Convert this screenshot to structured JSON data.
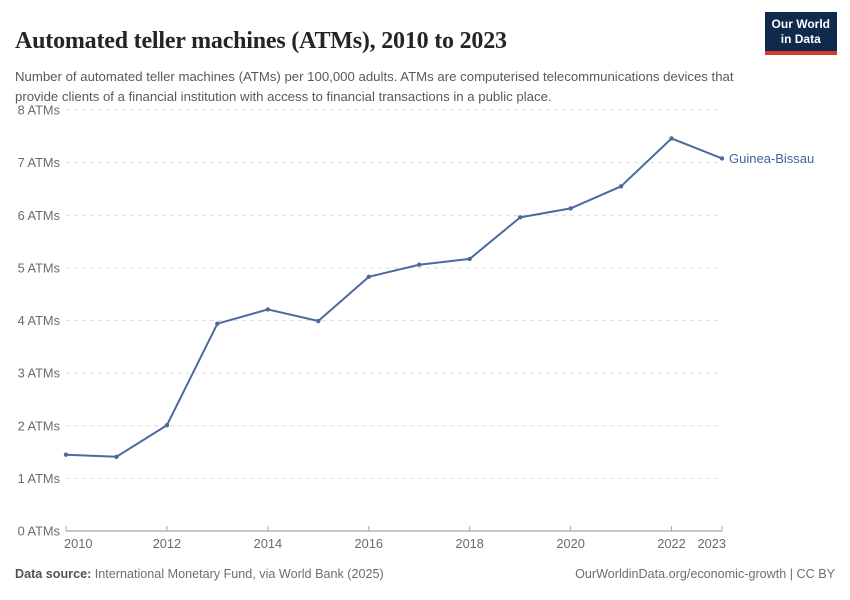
{
  "header": {
    "title": "Automated teller machines (ATMs), 2010 to 2023",
    "subtitle": "Number of automated teller machines (ATMs) per 100,000 adults. ATMs are computerised telecommunications devices that provide clients of a financial institution with access to financial transactions in a public place.",
    "logo": {
      "line1": "Our World",
      "line2": "in Data",
      "bg_color": "#102a4e",
      "accent_color": "#d33a2c"
    }
  },
  "chart_data": {
    "type": "line",
    "title": "Automated teller machines (ATMs), 2010 to 2023",
    "x": [
      2010,
      2011,
      2012,
      2013,
      2014,
      2015,
      2016,
      2017,
      2018,
      2019,
      2020,
      2021,
      2022,
      2023
    ],
    "series": [
      {
        "name": "Guinea-Bissau",
        "values": [
          1.45,
          1.41,
          2.01,
          3.94,
          4.21,
          3.99,
          4.83,
          5.06,
          5.17,
          5.96,
          6.13,
          6.55,
          7.46,
          7.08
        ]
      }
    ],
    "xlim": [
      2010,
      2023
    ],
    "ylim": [
      0,
      8
    ],
    "x_ticks": [
      2010,
      2012,
      2014,
      2016,
      2018,
      2020,
      2022,
      2023
    ],
    "y_ticks": [
      0,
      1,
      2,
      3,
      4,
      5,
      6,
      7,
      8
    ],
    "y_tick_suffix": " ATMs",
    "grid": "horizontal-dashed",
    "legend_position": "end-of-line-label",
    "end_label": "Guinea-Bissau",
    "colors": {
      "line": "#4c6a9c",
      "end_label": "#44639e",
      "grid": "#dcdcdc",
      "axis": "#8f8f8f",
      "tick": "#a8a8a8",
      "tick_text": "#6b6b6b"
    }
  },
  "footer": {
    "source_label": "Data source:",
    "source_text": " International Monetary Fund, via World Bank (2025)",
    "right_text": "OurWorldinData.org/economic-growth | CC BY"
  }
}
